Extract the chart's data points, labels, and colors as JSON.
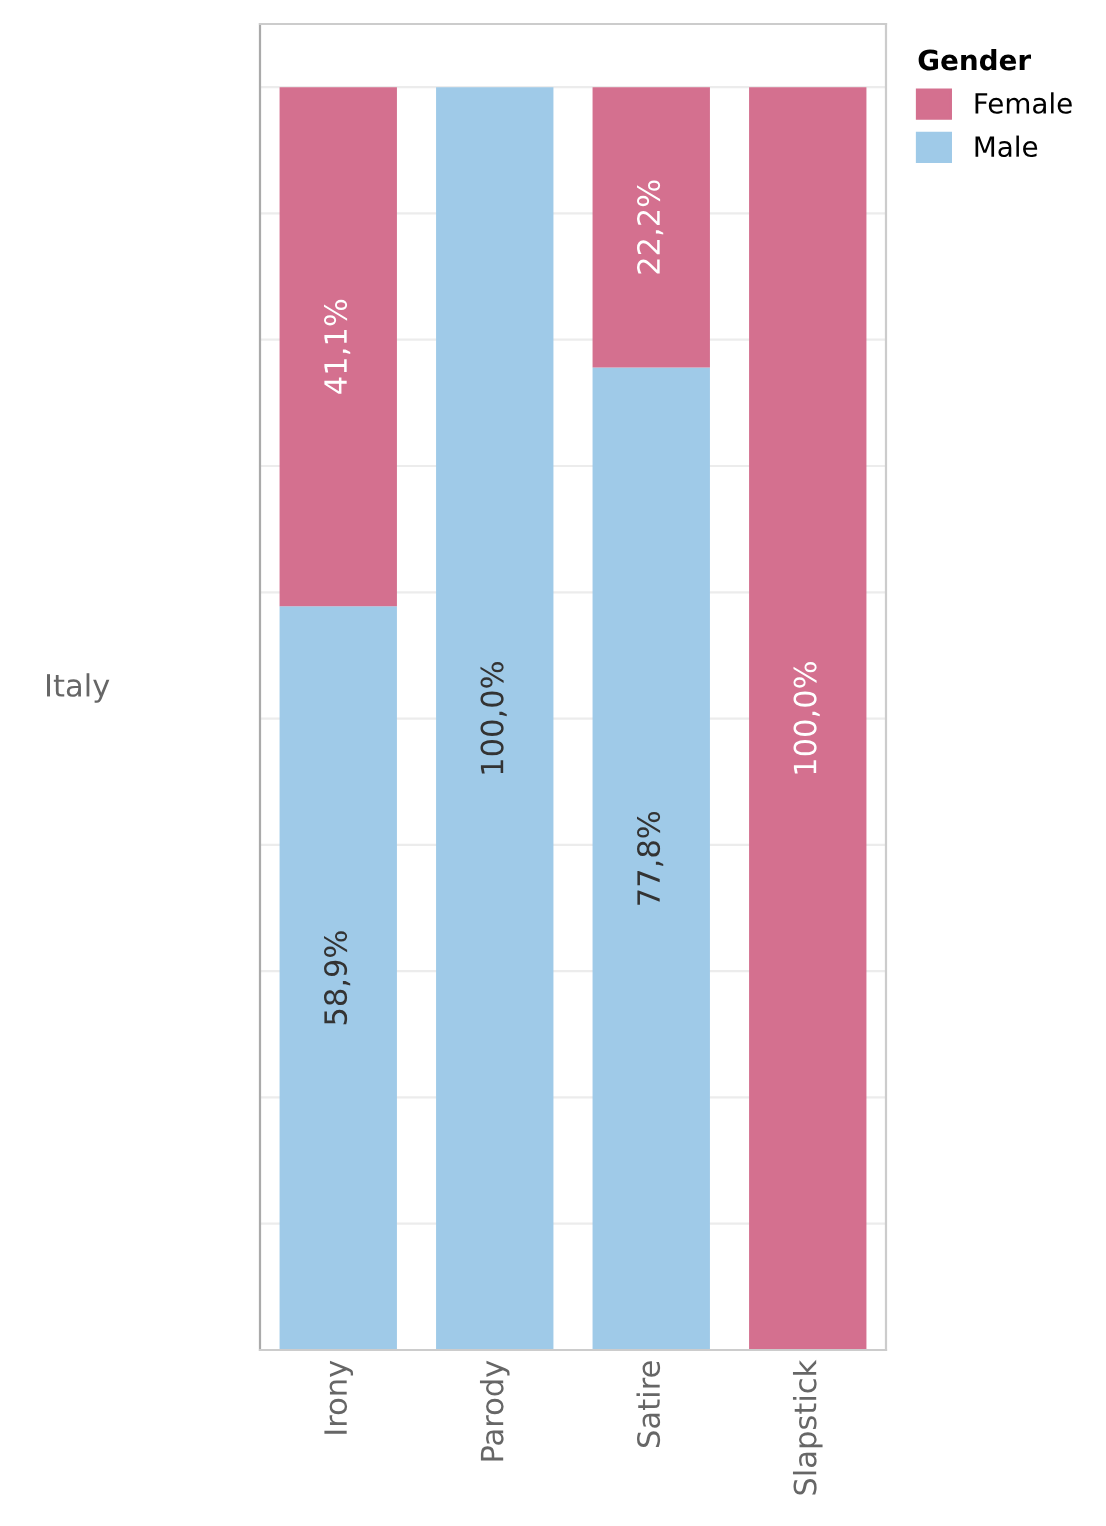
{
  "chart_data": {
    "type": "bar",
    "stacked": true,
    "annotations": [
      "Italy"
    ],
    "legend_title": "Gender",
    "legend": "top right",
    "categories": [
      "Irony",
      "Parody",
      "Satire",
      "Slapstick"
    ],
    "series": [
      {
        "name": "Male",
        "color": "#9fcae8",
        "values": [
          58.9,
          100,
          77.8,
          null
        ],
        "value_labels": [
          "58,9%",
          "100,0%",
          "77,8%",
          null
        ]
      },
      {
        "name": "Female",
        "color": "#d4708f",
        "values": [
          41.1,
          null,
          22.2,
          100
        ],
        "value_labels": [
          "41,1%",
          null,
          "22,2%",
          "100,0%"
        ]
      }
    ],
    "ylim": [
      0,
      105
    ],
    "yticks": [
      {
        "value": 0,
        "label": null
      },
      {
        "value": 10,
        "label": null
      },
      {
        "value": 20,
        "label": null
      },
      {
        "value": 30,
        "label": null
      },
      {
        "value": 40,
        "label": null
      },
      {
        "value": 50,
        "label": null
      },
      {
        "value": 60,
        "label": null
      },
      {
        "value": 70,
        "label": null
      },
      {
        "value": 80,
        "label": null
      },
      {
        "value": 90,
        "label": null
      },
      {
        "value": 100,
        "label": null
      }
    ],
    "grid": "y",
    "tick_labels": "x"
  }
}
